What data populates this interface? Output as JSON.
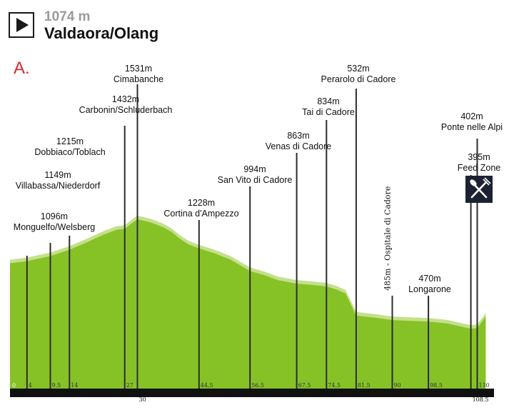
{
  "header": {
    "elevation": "1074 m",
    "town": "Valdaora/Olang",
    "route_letter": "A.",
    "play_icon": "play-icon"
  },
  "colors": {
    "profile_dark": "#86c226",
    "profile_light": "#c4e08c",
    "axis_bar": "#111111",
    "route_letter": "#d6292f"
  },
  "chart_data": {
    "type": "area",
    "x_unit": "km",
    "xlim": [
      0,
      110
    ],
    "profile": [
      [
        0,
        1074
      ],
      [
        4,
        1096
      ],
      [
        9.5,
        1149
      ],
      [
        14,
        1215
      ],
      [
        18,
        1290
      ],
      [
        22,
        1370
      ],
      [
        25,
        1420
      ],
      [
        27,
        1432
      ],
      [
        29,
        1500
      ],
      [
        30,
        1531
      ],
      [
        33,
        1500
      ],
      [
        36,
        1450
      ],
      [
        38,
        1400
      ],
      [
        40,
        1330
      ],
      [
        42,
        1270
      ],
      [
        44.5,
        1228
      ],
      [
        48,
        1180
      ],
      [
        52,
        1110
      ],
      [
        56.5,
        994
      ],
      [
        60,
        950
      ],
      [
        63,
        900
      ],
      [
        67.5,
        863
      ],
      [
        71,
        850
      ],
      [
        74.5,
        834
      ],
      [
        77,
        800
      ],
      [
        79,
        760
      ],
      [
        81.5,
        532
      ],
      [
        86,
        510
      ],
      [
        90,
        485
      ],
      [
        94,
        478
      ],
      [
        98.5,
        470
      ],
      [
        103,
        450
      ],
      [
        107,
        410
      ],
      [
        108.5,
        395
      ],
      [
        110,
        402
      ],
      [
        112,
        520
      ]
    ],
    "km_ticks": [
      {
        "km": 0,
        "label": "0"
      },
      {
        "km": 4,
        "label": "4"
      },
      {
        "km": 9.5,
        "label": "9.5"
      },
      {
        "km": 14,
        "label": "14"
      },
      {
        "km": 27,
        "label": "27"
      },
      {
        "km": 30,
        "label": "30"
      },
      {
        "km": 44.5,
        "label": "44.5"
      },
      {
        "km": 56.5,
        "label": "56.5"
      },
      {
        "km": 67.5,
        "label": "67.5"
      },
      {
        "km": 74.5,
        "label": "74.5"
      },
      {
        "km": 81.5,
        "label": "81.5"
      },
      {
        "km": 90,
        "label": "90"
      },
      {
        "km": 98.5,
        "label": "98.5"
      },
      {
        "km": 108.5,
        "label": "108.5"
      },
      {
        "km": 110,
        "label": "110"
      }
    ],
    "waypoints": [
      {
        "km": 4,
        "elevation": "1096m",
        "name": "Monguelfo/Welsberg"
      },
      {
        "km": 9.5,
        "elevation": "1149m",
        "name": "Villabassa/Niederdorf"
      },
      {
        "km": 14,
        "elevation": "1215m",
        "name": "Dobbiaco/Toblach"
      },
      {
        "km": 27,
        "elevation": "1432m",
        "name": "Carbonin/Schluderbach"
      },
      {
        "km": 30,
        "elevation": "1531m",
        "name": "Cimabanche"
      },
      {
        "km": 44.5,
        "elevation": "1228m",
        "name": "Cortina d'Ampezzo"
      },
      {
        "km": 56.5,
        "elevation": "994m",
        "name": "San Vito di Cadore"
      },
      {
        "km": 67.5,
        "elevation": "863m",
        "name": "Venas di Cadore"
      },
      {
        "km": 74.5,
        "elevation": "834m",
        "name": "Tai di Cadore"
      },
      {
        "km": 81.5,
        "elevation": "532m",
        "name": "Perarolo di Cadore"
      },
      {
        "km": 90,
        "elevation": "485m",
        "name": "Ospitale di Cadore",
        "text": "485m - Ospitale di Cadore",
        "rotated": true
      },
      {
        "km": 98.5,
        "elevation": "470m",
        "name": "Longarone"
      },
      {
        "km": 108.5,
        "elevation": "395m",
        "name": "Feed Zone",
        "feed_icon": "fork-knife-icon"
      },
      {
        "km": 110,
        "elevation": "402m",
        "name": "Ponte nelle Alpi"
      }
    ]
  }
}
